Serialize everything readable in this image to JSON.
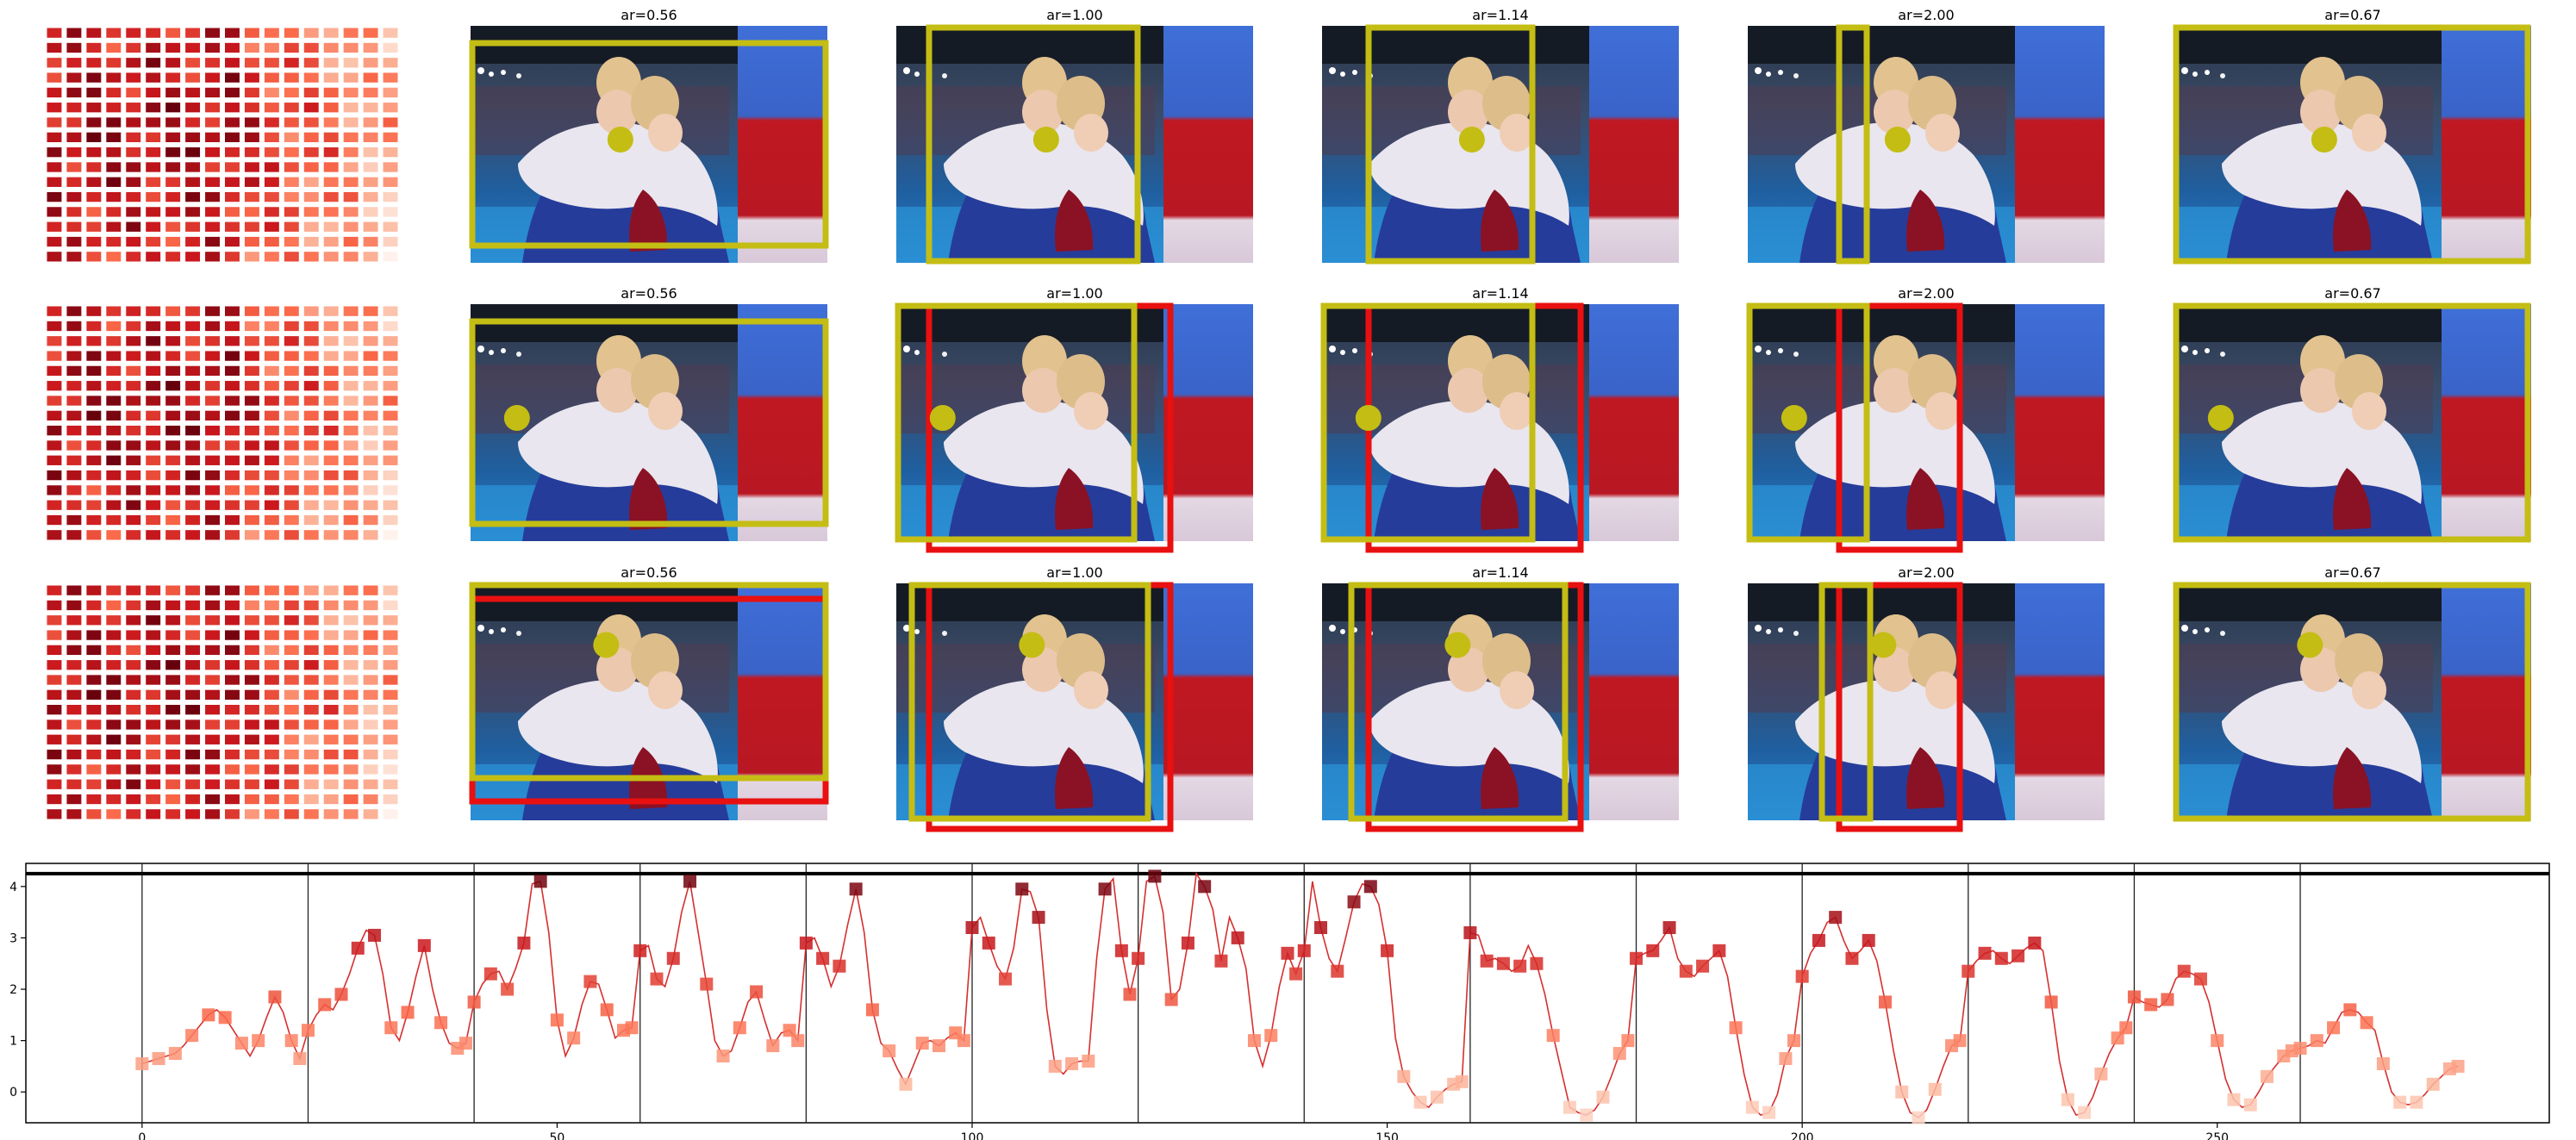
{
  "panels": [
    {
      "row": 0,
      "crops": [
        {
          "title": "ar=0.56",
          "dot": [
            0.42,
            0.48
          ]
        },
        {
          "title": "ar=1.00",
          "dot": [
            0.42,
            0.48
          ]
        },
        {
          "title": "ar=1.14",
          "dot": [
            0.42,
            0.48
          ]
        },
        {
          "title": "ar=2.00",
          "dot": [
            0.42,
            0.48
          ]
        },
        {
          "title": "ar=0.67",
          "dot": [
            0.42,
            0.48
          ]
        }
      ]
    },
    {
      "row": 1,
      "crops": [
        {
          "title": "ar=0.56",
          "dot": [
            0.13,
            0.48
          ]
        },
        {
          "title": "ar=1.00",
          "dot": [
            0.13,
            0.48
          ]
        },
        {
          "title": "ar=1.14",
          "dot": [
            0.13,
            0.48
          ]
        },
        {
          "title": "ar=2.00",
          "dot": [
            0.13,
            0.48
          ]
        },
        {
          "title": "ar=0.67",
          "dot": [
            0.13,
            0.48
          ]
        }
      ]
    },
    {
      "row": 2,
      "crops": [
        {
          "title": "ar=0.56",
          "dot": [
            0.38,
            0.26
          ]
        },
        {
          "title": "ar=1.00",
          "dot": [
            0.38,
            0.26
          ]
        },
        {
          "title": "ar=1.14",
          "dot": [
            0.38,
            0.26
          ]
        },
        {
          "title": "ar=2.00",
          "dot": [
            0.38,
            0.26
          ]
        },
        {
          "title": "ar=0.67",
          "dot": [
            0.38,
            0.26
          ]
        }
      ]
    }
  ],
  "colors": {
    "crop_box": "#c4bd14",
    "alt_box": "#e81010",
    "dot": "#c4bd14",
    "line": "#d62f2f"
  },
  "chart_data": {
    "type": "line",
    "title": "",
    "xlabel": "",
    "ylabel": "",
    "xlim": [
      -14,
      290
    ],
    "ylim": [
      -0.6,
      4.45
    ],
    "xticks": [
      0,
      50,
      100,
      150,
      200,
      250
    ],
    "yticks": [
      0,
      1,
      2,
      3,
      4
    ],
    "segment_boundaries": [
      0,
      20,
      40,
      60,
      80,
      100,
      120,
      140,
      160,
      180,
      200,
      220,
      240,
      260
    ],
    "hline": 4.25,
    "y": [
      0.55,
      0.6,
      0.65,
      0.7,
      0.75,
      0.9,
      1.1,
      1.3,
      1.5,
      1.6,
      1.45,
      1.2,
      0.95,
      0.7,
      1.0,
      1.45,
      1.85,
      1.55,
      1.0,
      0.65,
      1.2,
      1.5,
      1.7,
      1.6,
      1.9,
      2.3,
      2.8,
      3.15,
      3.05,
      2.3,
      1.25,
      1.0,
      1.55,
      2.25,
      2.85,
      2.0,
      1.35,
      0.95,
      0.85,
      0.95,
      1.75,
      2.1,
      2.3,
      2.35,
      2.0,
      2.4,
      2.9,
      4.05,
      4.1,
      3.1,
      1.4,
      0.7,
      1.05,
      1.7,
      2.15,
      2.1,
      1.6,
      1.05,
      1.2,
      1.25,
      2.75,
      2.85,
      2.2,
      2.05,
      2.6,
      3.5,
      4.1,
      3.1,
      2.1,
      1.0,
      0.7,
      0.8,
      1.25,
      1.75,
      1.95,
      1.4,
      0.9,
      1.15,
      1.2,
      1.0,
      2.9,
      3.0,
      2.6,
      2.05,
      2.45,
      3.25,
      3.95,
      3.1,
      1.6,
      0.95,
      0.8,
      0.45,
      0.15,
      0.55,
      0.95,
      1.0,
      0.9,
      1.05,
      1.15,
      1.0,
      3.2,
      3.4,
      2.9,
      2.45,
      2.2,
      2.8,
      3.95,
      3.9,
      3.4,
      1.6,
      0.5,
      0.35,
      0.55,
      0.6,
      0.6,
      2.6,
      3.95,
      4.15,
      2.75,
      1.9,
      2.6,
      4.1,
      4.2,
      3.5,
      1.8,
      2.0,
      2.9,
      4.25,
      4.0,
      3.55,
      2.55,
      3.4,
      3.0,
      2.4,
      1.0,
      0.5,
      1.1,
      2.05,
      2.7,
      2.3,
      2.75,
      4.1,
      3.2,
      2.6,
      2.35,
      3.0,
      3.7,
      4.05,
      4.0,
      3.65,
      2.75,
      1.05,
      0.3,
      0.0,
      -0.2,
      -0.3,
      -0.1,
      0.05,
      0.15,
      0.2,
      3.1,
      3.05,
      2.55,
      2.6,
      2.5,
      2.35,
      2.45,
      2.85,
      2.5,
      1.9,
      1.1,
      0.4,
      -0.3,
      -0.4,
      -0.45,
      -0.35,
      -0.1,
      0.3,
      0.75,
      1.0,
      2.6,
      2.7,
      2.75,
      2.95,
      3.2,
      2.6,
      2.35,
      2.25,
      2.45,
      2.6,
      2.75,
      2.25,
      1.25,
      0.35,
      -0.3,
      -0.45,
      -0.4,
      -0.05,
      0.65,
      1.0,
      2.25,
      2.7,
      2.95,
      3.3,
      3.4,
      2.95,
      2.6,
      2.75,
      2.95,
      2.55,
      1.75,
      0.8,
      0.0,
      -0.4,
      -0.5,
      -0.35,
      0.05,
      0.5,
      0.9,
      1.0,
      2.35,
      2.55,
      2.7,
      2.75,
      2.6,
      2.5,
      2.65,
      2.8,
      2.9,
      2.75,
      1.75,
      0.6,
      -0.15,
      -0.45,
      -0.4,
      -0.1,
      0.35,
      0.75,
      1.05,
      1.25,
      1.85,
      1.75,
      1.7,
      1.65,
      1.8,
      2.2,
      2.35,
      2.3,
      2.2,
      1.75,
      1.0,
      0.25,
      -0.15,
      -0.3,
      -0.25,
      0.0,
      0.3,
      0.5,
      0.7,
      0.8,
      0.85,
      0.9,
      1.0,
      0.95,
      1.25,
      1.55,
      1.6,
      1.55,
      1.35,
      1.2,
      0.55,
      0.0,
      -0.2,
      -0.25,
      -0.2,
      -0.05,
      0.15,
      0.3,
      0.45,
      0.5
    ]
  }
}
